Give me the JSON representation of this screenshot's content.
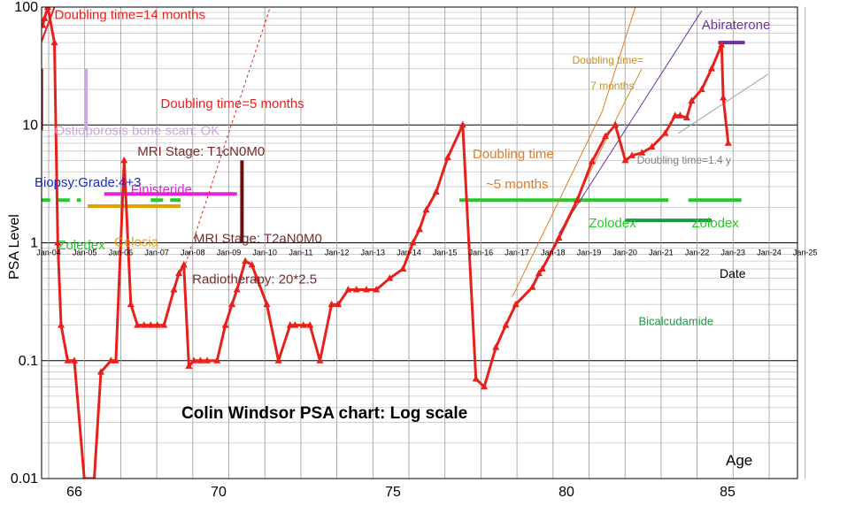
{
  "chart_data": {
    "type": "line",
    "title": "Colin Windsor PSA chart: Log scale",
    "ylabel": "PSA Level",
    "xlabel": "Age",
    "date_axis_label": "Date",
    "y_scale": "log",
    "ylim": [
      0.01,
      100
    ],
    "xlim": [
      64.7,
      86.9
    ],
    "y_ticks": [
      "0.01",
      "0.1",
      "1",
      "10",
      "100"
    ],
    "age_ticks": [
      "66",
      "70",
      "75",
      "80",
      "85"
    ],
    "date_ticks": [
      "Jan-04",
      "Jan-05",
      "Jan-06",
      "Jan-07",
      "Jan-08",
      "Jan-09",
      "Jan-10",
      "Jan-11",
      "Jan-12",
      "Jan-13",
      "Jan-14",
      "Jan-15",
      "Jan-16",
      "Jan-17",
      "Jan-18",
      "Jan-19",
      "Jan-20",
      "Jan-21",
      "Jan-22",
      "Jan-23",
      "Jan-24",
      "Jan-25"
    ],
    "grid": true,
    "legend": "none",
    "series": [
      {
        "color": "#e8201c",
        "points": [
          [
            65.05,
            70
          ],
          [
            65.1,
            80
          ],
          [
            65.2,
            100
          ],
          [
            65.4,
            50
          ],
          [
            65.5,
            1
          ],
          [
            65.6,
            0.2
          ],
          [
            65.8,
            0.1
          ],
          [
            66.0,
            0.1
          ],
          [
            66.3,
            0.01
          ],
          [
            66.6,
            0.01
          ],
          [
            66.8,
            0.08
          ],
          [
            67.1,
            0.1
          ],
          [
            67.25,
            0.1
          ],
          [
            67.5,
            5.0
          ],
          [
            67.7,
            0.3
          ],
          [
            67.9,
            0.2
          ],
          [
            68.1,
            0.2
          ],
          [
            68.3,
            0.2
          ],
          [
            68.5,
            0.2
          ],
          [
            68.7,
            0.2
          ],
          [
            69.0,
            0.4
          ],
          [
            69.15,
            0.55
          ],
          [
            69.3,
            0.65
          ],
          [
            69.45,
            0.09
          ],
          [
            69.6,
            0.1
          ],
          [
            69.8,
            0.1
          ],
          [
            70.0,
            0.1
          ],
          [
            70.3,
            0.1
          ],
          [
            70.55,
            0.2
          ],
          [
            70.75,
            0.3
          ],
          [
            70.9,
            0.4
          ],
          [
            71.15,
            0.7
          ],
          [
            71.35,
            0.65
          ],
          [
            71.5,
            0.5
          ],
          [
            71.8,
            0.3
          ],
          [
            72.15,
            0.1
          ],
          [
            72.5,
            0.2
          ],
          [
            72.65,
            0.2
          ],
          [
            72.9,
            0.2
          ],
          [
            73.1,
            0.2
          ],
          [
            73.4,
            0.1
          ],
          [
            73.75,
            0.3
          ],
          [
            73.95,
            0.3
          ],
          [
            74.25,
            0.4
          ],
          [
            74.5,
            0.4
          ],
          [
            74.8,
            0.4
          ],
          [
            75.1,
            0.4
          ],
          [
            75.5,
            0.5
          ],
          [
            75.9,
            0.6
          ],
          [
            76.2,
            1.0
          ],
          [
            76.4,
            1.3
          ],
          [
            76.6,
            1.9
          ],
          [
            76.9,
            2.7
          ],
          [
            77.25,
            5.3
          ],
          [
            77.7,
            10.0
          ],
          [
            78.1,
            0.07
          ],
          [
            78.35,
            0.06
          ],
          [
            78.7,
            0.13
          ],
          [
            79.0,
            0.2
          ],
          [
            79.3,
            0.3
          ],
          [
            79.8,
            0.42
          ],
          [
            80.0,
            0.55
          ],
          [
            80.1,
            0.6
          ],
          [
            80.6,
            1.1
          ],
          [
            81.15,
            2.3
          ],
          [
            81.6,
            4.9
          ],
          [
            82.0,
            8.0
          ],
          [
            82.3,
            10.0
          ],
          [
            82.6,
            5.0
          ],
          [
            82.8,
            5.5
          ],
          [
            83.1,
            5.8
          ],
          [
            83.4,
            6.5
          ],
          [
            83.8,
            8.5
          ],
          [
            84.1,
            12.0
          ],
          [
            84.25,
            12.0
          ],
          [
            84.45,
            11.5
          ],
          [
            84.6,
            16.0
          ],
          [
            84.9,
            20.0
          ],
          [
            85.2,
            30.0
          ],
          [
            85.5,
            48.0
          ],
          [
            85.55,
            17.0
          ],
          [
            85.7,
            7.0
          ]
        ]
      }
    ],
    "trend_lines": [
      {
        "label": "Doubling time=14 months",
        "color": "#e8201c",
        "style": "solid",
        "width": 2,
        "points": [
          [
            65.0,
            50
          ],
          [
            65.4,
            100
          ]
        ]
      },
      {
        "label": "Doubling time=5 months",
        "color": "#e8201c",
        "style": "dashed",
        "width": 1,
        "points": [
          [
            69.3,
            0.6
          ],
          [
            71.9,
            100
          ]
        ]
      },
      {
        "label": "Doubling time ~5 months",
        "color": "#e27b24",
        "style": "solid",
        "width": 1,
        "points": [
          [
            79.2,
            0.35
          ],
          [
            81.9,
            13.0
          ],
          [
            82.9,
            100
          ]
        ]
      },
      {
        "label": "Doubling time=7 months",
        "color": "#d09030",
        "style": "solid",
        "width": 1,
        "points": [
          [
            79.95,
            0.5
          ],
          [
            82.6,
            16.0
          ],
          [
            83.1,
            30.0
          ]
        ]
      },
      {
        "label": "Abiraterone",
        "color": "#7030a0",
        "style": "solid",
        "width": 1,
        "points": [
          [
            80.6,
            1.2
          ],
          [
            84.9,
            93.0
          ]
        ]
      },
      {
        "label": "Doubling time=1.4 y",
        "color": "#a0a0a0",
        "style": "solid",
        "width": 1,
        "points": [
          [
            84.2,
            8.5
          ],
          [
            86.9,
            27.0
          ]
        ]
      }
    ],
    "annotations": [
      {
        "text": "Doubling time=14 months",
        "color": "#e8201c",
        "x": 65.4,
        "y": 79
      },
      {
        "text": "Doubling time=5 months",
        "color": "#e8201c",
        "x": 68.6,
        "y": 14
      },
      {
        "text": "Ostioporosis bone scan: OK",
        "color": "#c8a8e0",
        "x": 65.4,
        "y": 8.2
      },
      {
        "text": "Biopsy:Grade:4+3",
        "color": "#1b2bc8",
        "x": 64.8,
        "y": 3.0
      },
      {
        "text": "MRI Stage: T1cN0M0",
        "color": "#7a2a2a",
        "x": 67.9,
        "y": 5.5
      },
      {
        "text": "Finisteride",
        "color": "#e820d8",
        "x": 67.7,
        "y": 2.6
      },
      {
        "text": "Zoledex",
        "color": "#22cc22",
        "x": 65.5,
        "y": 0.88
      },
      {
        "text": "Celosia",
        "color": "#e8a000",
        "x": 67.2,
        "y": 0.93
      },
      {
        "text": "MRI Stage: T2aN0M0",
        "color": "#7a2a2a",
        "x": 69.6,
        "y": 1.0
      },
      {
        "text": "Radiotherapy:  20*2.5",
        "color": "#7a2a2a",
        "x": 69.55,
        "y": 0.45
      },
      {
        "text": "Doubling time",
        "color": "#e27b24",
        "x": 78.0,
        "y": 5.2
      },
      {
        "text": "~5 months",
        "color": "#e27b24",
        "x": 78.4,
        "y": 2.9
      },
      {
        "text": "Doubling time=",
        "color": "#c8902a",
        "x": 81.0,
        "y": 33.0
      },
      {
        "text": "7 months",
        "color": "#c8902a",
        "x": 81.55,
        "y": 20.0
      },
      {
        "text": "Abiraterone",
        "color": "#7030a0",
        "x": 84.9,
        "y": 65.0
      },
      {
        "text": "Zolodex",
        "color": "#22cc22",
        "x": 81.5,
        "y": 1.35
      },
      {
        "text": "Zolodex",
        "color": "#22cc22",
        "x": 84.6,
        "y": 1.35
      },
      {
        "text": "Bicalcudamide",
        "color": "#1a9a40",
        "x": 83.0,
        "y": 0.2
      },
      {
        "text": "Doubling time=1.4 y",
        "color": "#808080",
        "x": 82.95,
        "y": 4.7
      }
    ],
    "bars": [
      {
        "color": "#1b2bc8",
        "x1": 64.8,
        "x2": 64.8,
        "y1": 3.2,
        "y2": 30
      },
      {
        "color": "#7a0000",
        "x1": 65.0,
        "x2": 65.0,
        "y1": 9.0,
        "y2": 30
      },
      {
        "color": "#c8a8e0",
        "x1": 66.35,
        "x2": 66.35,
        "y1": 9.0,
        "y2": 30
      },
      {
        "color": "#6b1010",
        "x1": 71.05,
        "x2": 71.05,
        "y1": 1.0,
        "y2": 5.0
      },
      {
        "color": "#e820d8",
        "x1": 66.9,
        "x2": 70.9,
        "y1": 2.6,
        "y2": 2.6
      },
      {
        "color": "#22cc22",
        "x1": 64.9,
        "x2": 66.2,
        "y1": 2.3,
        "y2": 2.3,
        "dashed": true
      },
      {
        "color": "#22cc22",
        "x1": 68.3,
        "x2": 69.2,
        "y1": 2.3,
        "y2": 2.3,
        "dashed": true
      },
      {
        "color": "#e8a000",
        "x1": 66.4,
        "x2": 69.2,
        "y1": 2.05,
        "y2": 2.05
      },
      {
        "color": "#22cc22",
        "x1": 77.6,
        "x2": 83.9,
        "y1": 2.3,
        "y2": 2.3
      },
      {
        "color": "#22cc22",
        "x1": 84.5,
        "x2": 86.1,
        "y1": 2.3,
        "y2": 2.3
      },
      {
        "color": "#1a9a40",
        "x1": 82.6,
        "x2": 85.2,
        "y1": 1.55,
        "y2": 1.55
      },
      {
        "color": "#7030a0",
        "x1": 85.4,
        "x2": 86.2,
        "y1": 50,
        "y2": 50
      }
    ]
  }
}
